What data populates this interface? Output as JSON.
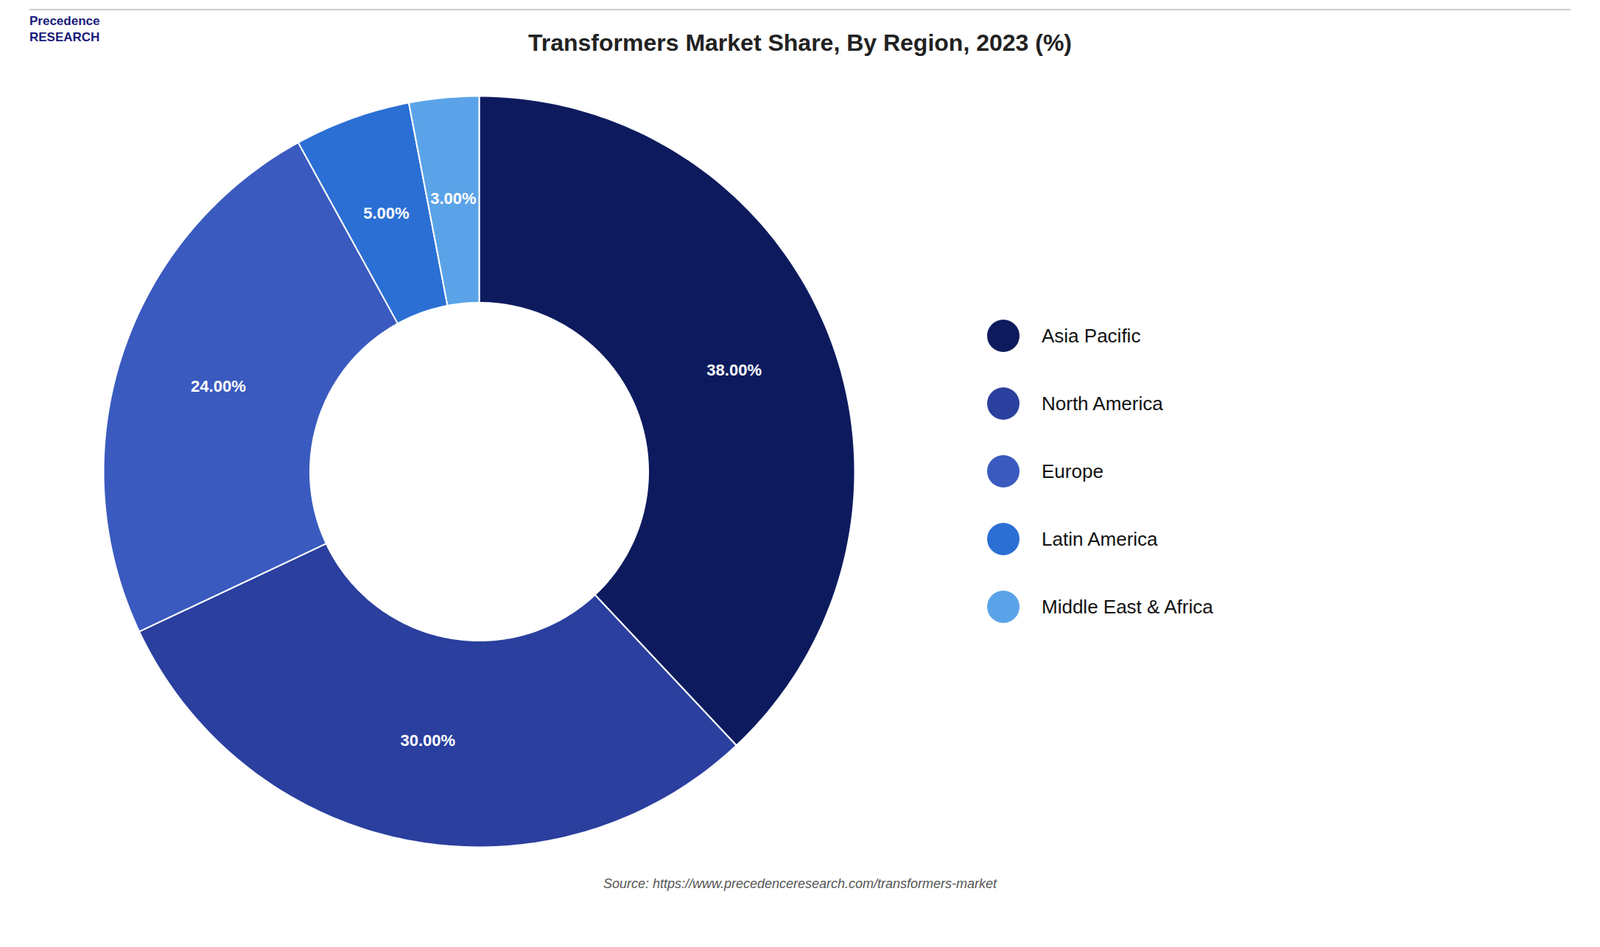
{
  "chart_data": {
    "type": "pie",
    "title": "Transformers Market Share, By Region, 2023 (%)",
    "categories": [
      "Asia Pacific",
      "North America",
      "Europe",
      "Latin America",
      "Middle East & Africa"
    ],
    "values": [
      38.0,
      30.0,
      24.0,
      5.0,
      3.0
    ],
    "value_labels": [
      "38.00%",
      "30.00%",
      "24.00%",
      "5.00%",
      "3.00%"
    ],
    "colors": [
      "#0d1b5e",
      "#2a3f9e",
      "#3a5abf",
      "#2b6fd4",
      "#5ba3e8"
    ],
    "data_labels": true,
    "legend": "right",
    "annotations": [
      "Precedence\nRESEARCH",
      "Source: https://www.precedenceresearch.com/transformers-market"
    ]
  }
}
